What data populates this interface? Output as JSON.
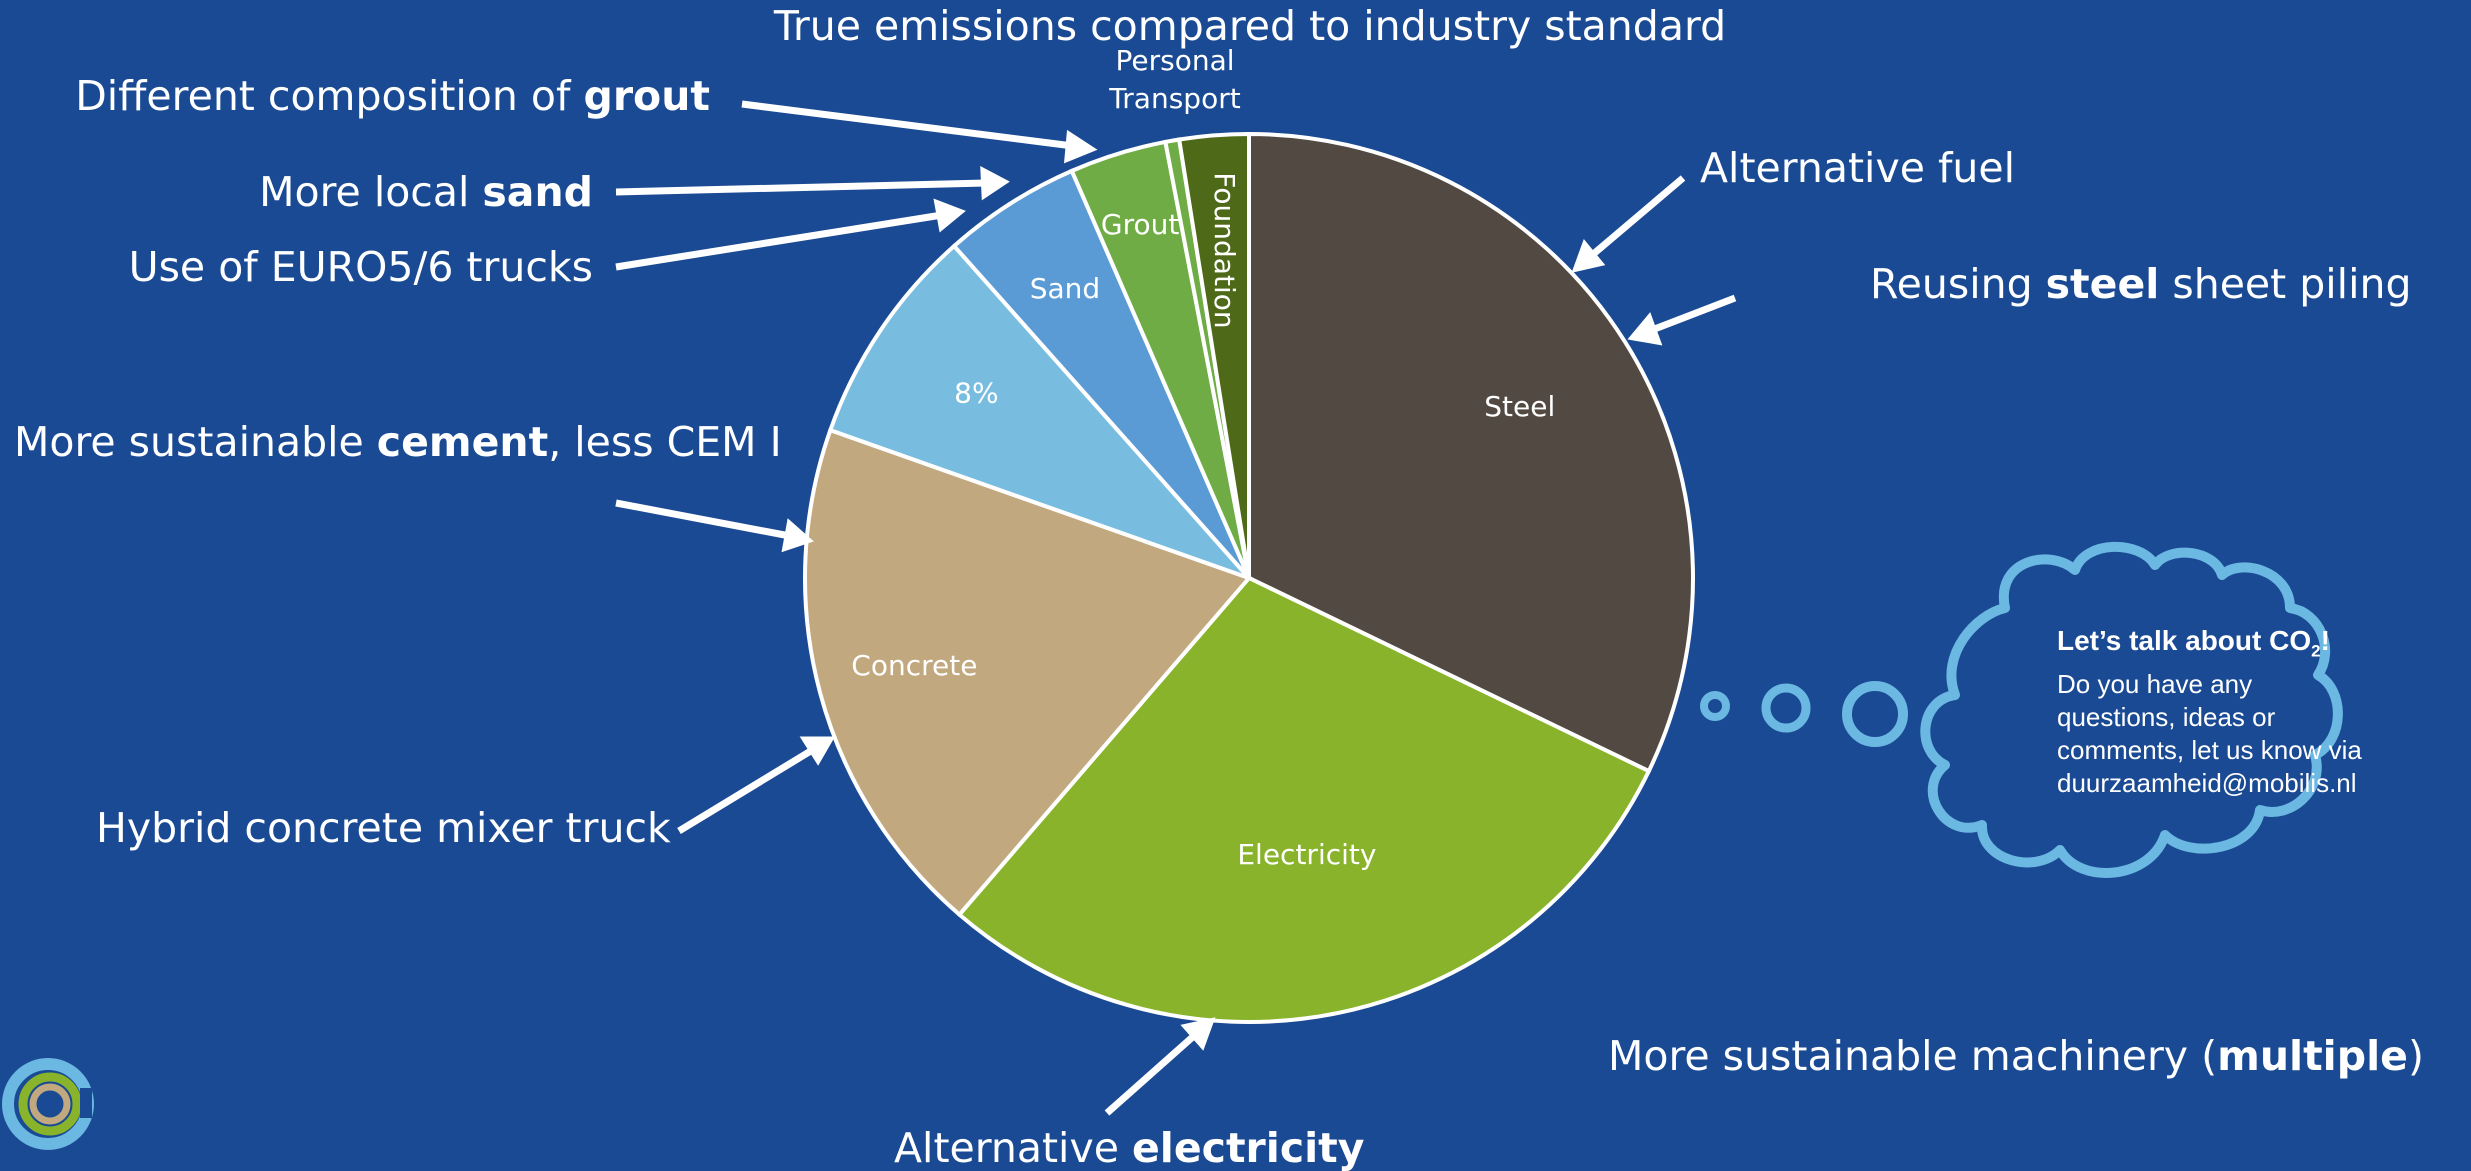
{
  "chart_data": {
    "type": "pie",
    "title": "True emissions compared to industry standard",
    "categories": [
      "Steel",
      "Electricity",
      "Concrete",
      "",
      "Sand",
      "Grout",
      "Personal Transport",
      "Foundation"
    ],
    "values": [
      32,
      29,
      19,
      8,
      5,
      3.5,
      0.5,
      2.5
    ],
    "colors": [
      "#524A42",
      "#88B32B",
      "#C2A87E",
      "#78BDE0",
      "#5B9BD5",
      "#6FAC45",
      "#6FAC45",
      "#4E6A19"
    ],
    "slice_labels": [
      "Steel",
      "Electricity",
      "Concrete",
      "8%",
      "Sand",
      "Grout",
      "",
      "Foundation"
    ],
    "outside_label": "Personal Transport",
    "start_angle_deg": 0,
    "direction": "clockwise",
    "legend": "none"
  },
  "annotations": {
    "grout": {
      "pre": "Different composition of ",
      "bold": "grout",
      "post": ""
    },
    "sand": {
      "pre": "More local ",
      "bold": "sand",
      "post": ""
    },
    "trucks": {
      "pre": "Use of EURO5/6 trucks",
      "bold": "",
      "post": ""
    },
    "cement": {
      "pre": "More sustainable ",
      "bold": "cement",
      "post": ", less CEM I"
    },
    "mixer": {
      "pre": "Hybrid concrete mixer truck",
      "bold": "",
      "post": ""
    },
    "electricity": {
      "pre": "Alternative ",
      "bold": "electricity",
      "post": ""
    },
    "fuel": {
      "pre": "Alternative fuel",
      "bold": "",
      "post": ""
    },
    "steel": {
      "pre": "Reusing ",
      "bold": "steel",
      "post": " sheet piling"
    },
    "machinery": {
      "pre": "More sustainable machinery (",
      "bold": "multiple",
      "post": ")"
    }
  },
  "cloud": {
    "heading_pre": "Let’s talk about CO",
    "heading_sub": "2",
    "heading_post": "!",
    "line1": "Do you have any",
    "line2": "questions, ideas or",
    "line3": "comments, let us know via",
    "line4": "duurzaamheid@mobilis.nl"
  },
  "logo": {
    "icon": "company-ring-logo-icon",
    "colors": [
      "#6BB8E2",
      "#88B32B",
      "#C2A87E",
      "#1A4A93"
    ]
  }
}
